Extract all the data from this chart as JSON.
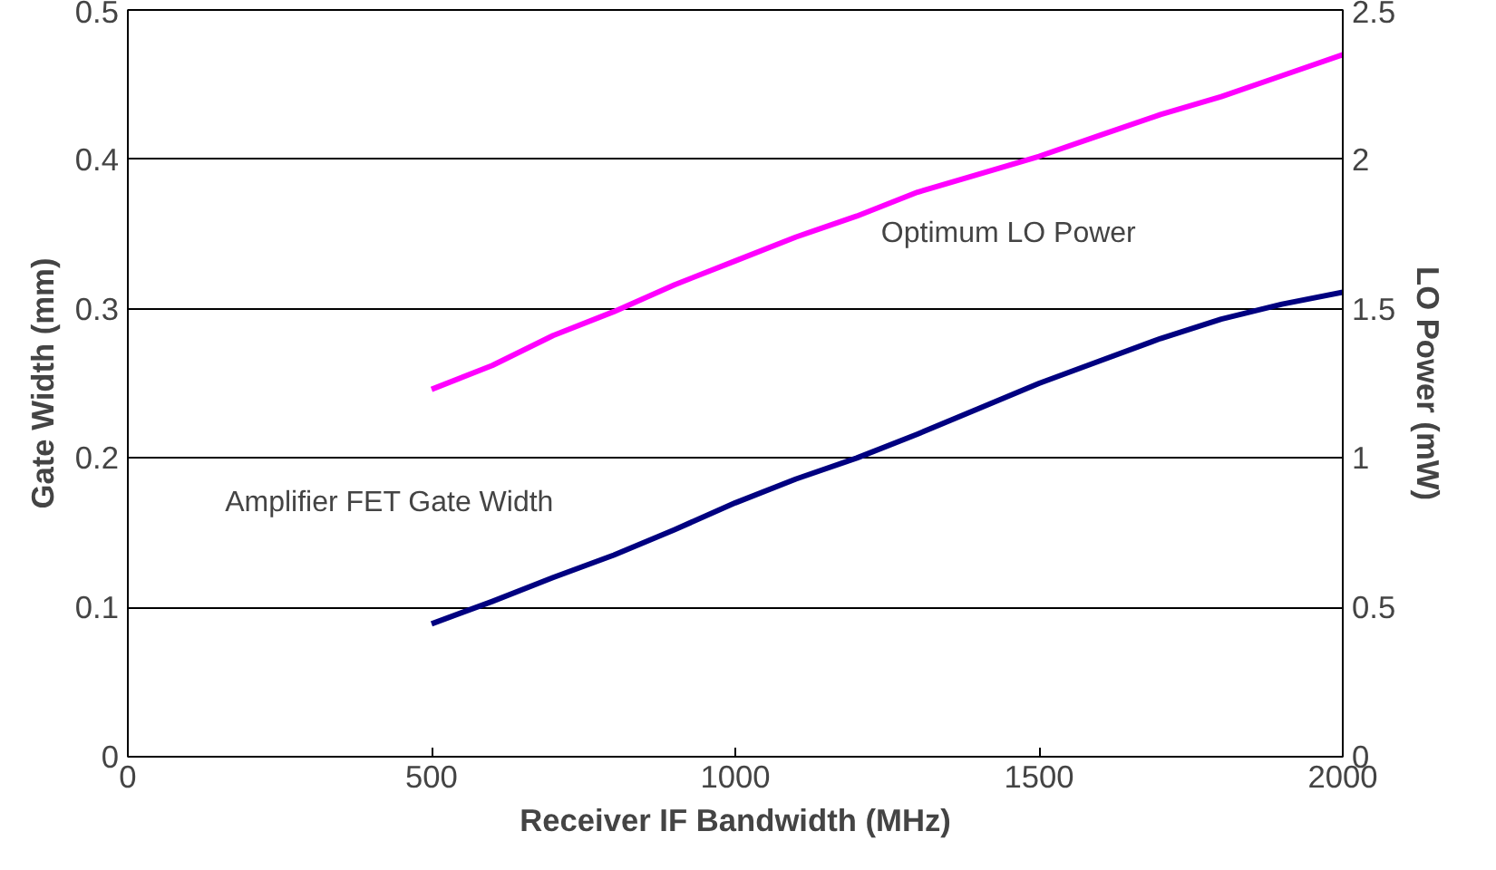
{
  "chart_data": {
    "type": "line",
    "xlabel": "Receiver IF Bandwidth (MHz)",
    "ylabel": "Gate Width (mm)",
    "y2label": "LO Power (mW)",
    "x": [
      500,
      600,
      700,
      800,
      900,
      1000,
      1100,
      1200,
      1300,
      1400,
      1500,
      1600,
      1700,
      1800,
      1900,
      2000
    ],
    "series": [
      {
        "color": "#000080",
        "values": [
          0.089,
          0.104,
          0.12,
          0.135,
          0.152,
          0.17,
          0.186,
          0.2,
          0.216,
          0.233,
          0.25,
          0.265,
          0.28,
          0.293,
          0.303,
          0.311
        ]
      },
      {
        "color": "#ff00ff",
        "axis": "y2",
        "values": [
          1.23,
          1.31,
          1.41,
          1.49,
          1.58,
          1.66,
          1.74,
          1.81,
          1.89,
          1.95,
          2.01,
          2.08,
          2.15,
          2.21,
          2.28,
          2.35
        ]
      }
    ],
    "annotations": [
      "Amplifier FET Gate Width",
      "Optimum LO Power"
    ],
    "xlim": [
      0,
      2000
    ],
    "xticks": [
      0,
      500,
      1000,
      1500,
      2000
    ],
    "ylim": [
      0,
      0.5
    ],
    "yticks": [
      0,
      0.1,
      0.2,
      0.3,
      0.4,
      0.5
    ],
    "y2lim": [
      0,
      2.5
    ],
    "y2ticks": [
      0,
      0.5,
      1,
      1.5,
      2,
      2.5
    ],
    "grid": "y",
    "marker": "none",
    "line_style": "solid"
  }
}
